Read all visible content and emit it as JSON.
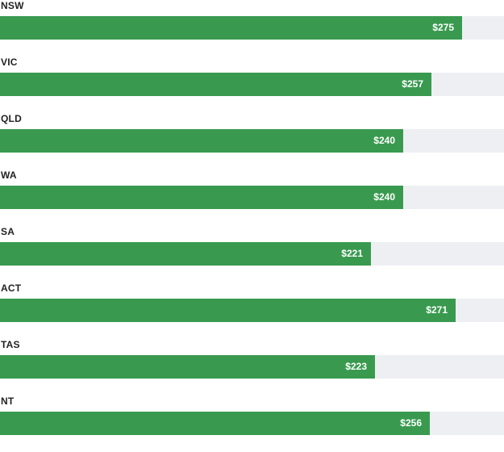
{
  "chart_data": {
    "type": "bar",
    "orientation": "horizontal",
    "xlim": [
      0,
      300
    ],
    "grid": false,
    "categories": [
      "NSW",
      "VIC",
      "QLD",
      "WA",
      "SA",
      "ACT",
      "TAS",
      "NT"
    ],
    "values": [
      275,
      257,
      240,
      240,
      221,
      271,
      223,
      256
    ],
    "value_labels": [
      "$275",
      "$257",
      "$240",
      "$240",
      "$221",
      "$271",
      "$223",
      "$256"
    ],
    "colors": {
      "bar": "#399a4f",
      "track": "#eeeff3"
    }
  }
}
